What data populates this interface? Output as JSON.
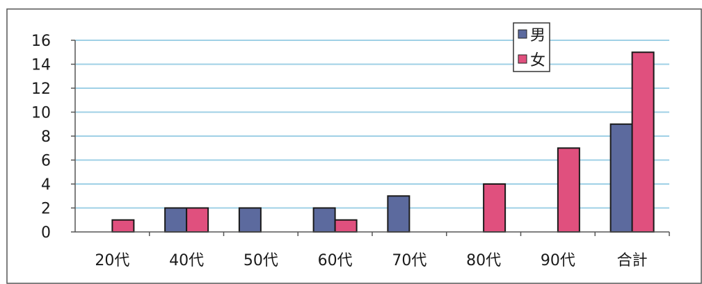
{
  "chart_data": {
    "type": "bar",
    "categories": [
      "20代",
      "40代",
      "50代",
      "60代",
      "70代",
      "80代",
      "90代",
      "合計"
    ],
    "series": [
      {
        "name": "男",
        "color": "#5C6A9E",
        "values": [
          0,
          2,
          2,
          2,
          3,
          0,
          0,
          9
        ]
      },
      {
        "name": "女",
        "color": "#E0507E",
        "values": [
          1,
          2,
          0,
          1,
          0,
          4,
          7,
          15
        ]
      }
    ],
    "yticks": [
      "0",
      "2",
      "4",
      "6",
      "8",
      "10",
      "12",
      "14",
      "16"
    ],
    "ylim": [
      0,
      16
    ],
    "grid": true,
    "gridline_color": "#9FD0E6",
    "legend_position": "top-right"
  }
}
